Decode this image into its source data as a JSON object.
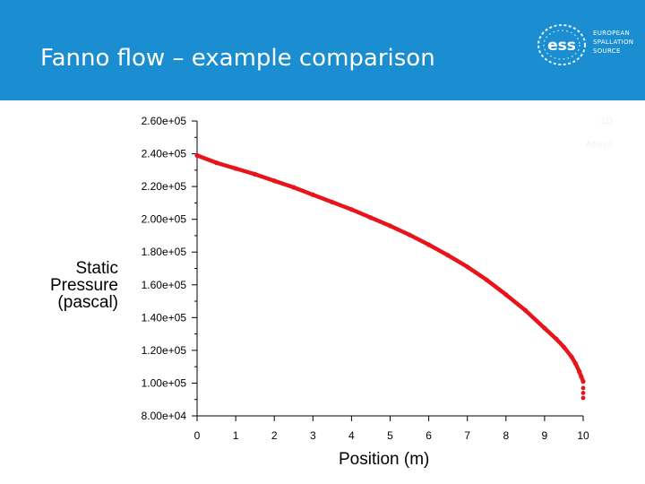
{
  "slide": {
    "title": "Fanno flow – example comparison",
    "logo": {
      "mark": "ess",
      "lines": [
        "EUROPEAN",
        "SPALLATION",
        "SOURCE"
      ],
      "icon": "ess-logo-icon"
    },
    "colors": {
      "header": "#1a8ed1",
      "series": "#e8141c"
    }
  },
  "chart_data": {
    "type": "scatter",
    "title": "",
    "xlabel": "Position (m)",
    "ylabel_lines": [
      "Static",
      "Pressure",
      "(pascal)"
    ],
    "xlim": [
      0,
      10
    ],
    "ylim": [
      80000,
      260000
    ],
    "x_ticks": [
      0,
      1,
      2,
      3,
      4,
      5,
      6,
      7,
      8,
      9,
      10
    ],
    "y_ticks": [
      80000,
      100000,
      120000,
      140000,
      160000,
      180000,
      200000,
      220000,
      240000,
      260000
    ],
    "x_tick_labels": [
      "0",
      "1",
      "2",
      "3",
      "4",
      "5",
      "6",
      "7",
      "8",
      "9",
      "10"
    ],
    "y_tick_labels": [
      "8.00e+04",
      "1.00e+05",
      "1.20e+05",
      "1.40e+05",
      "1.60e+05",
      "1.80e+05",
      "2.00e+05",
      "2.20e+05",
      "2.40e+05",
      "2.60e+05"
    ],
    "grid": false,
    "legend": {
      "placement": "top-right",
      "entries": [
        "1D",
        "Ansys"
      ]
    },
    "series": [
      {
        "color": "#e8141c",
        "x": [
          0,
          0.5,
          1,
          1.5,
          2,
          2.5,
          3,
          3.5,
          4,
          4.5,
          5,
          5.5,
          6,
          6.5,
          7,
          7.5,
          8,
          8.5,
          9,
          9.3,
          9.5,
          9.7,
          9.8,
          9.9,
          9.95,
          10
        ],
        "y": [
          239000,
          234500,
          231000,
          227500,
          223500,
          219500,
          215000,
          210500,
          206000,
          201000,
          196000,
          190500,
          184500,
          178000,
          171000,
          163000,
          154000,
          144500,
          133500,
          127000,
          122000,
          116000,
          112000,
          107000,
          104000,
          101000
        ]
      }
    ],
    "outlier_points": [
      {
        "x": 10,
        "y": 97000
      },
      {
        "x": 10,
        "y": 94000
      },
      {
        "x": 10,
        "y": 91000
      }
    ]
  }
}
